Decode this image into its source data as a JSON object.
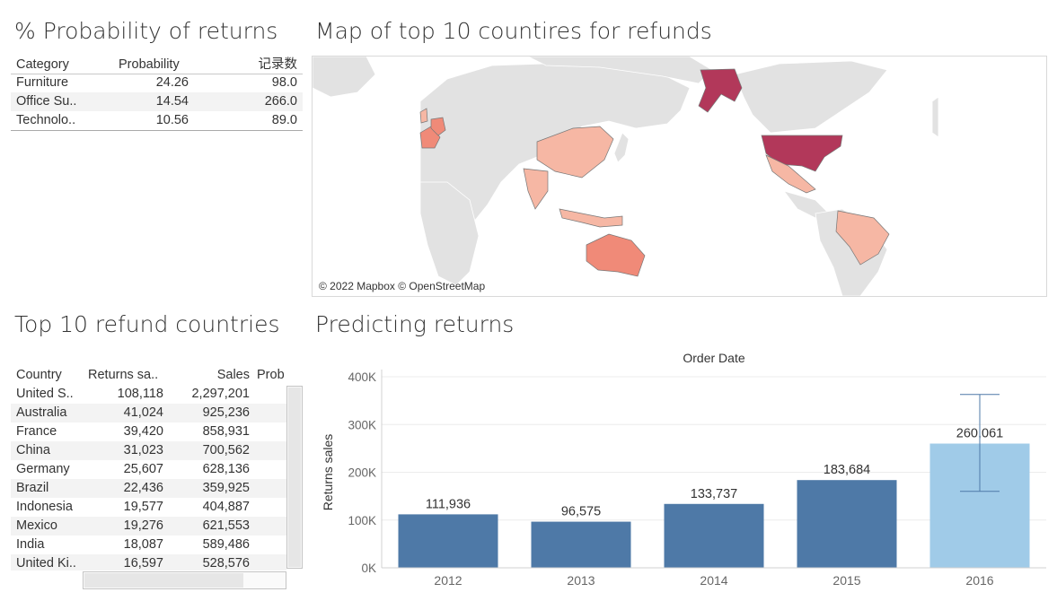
{
  "sheets": {
    "prob_title": "% Probability of returns",
    "map_title": "Map of top 10 countires for refunds",
    "top10_title": "Top 10 refund countries",
    "predict_title": "Predicting returns"
  },
  "probability_table": {
    "headers": [
      "Category",
      "Probability",
      "记录数"
    ],
    "rows": [
      {
        "category": "Furniture",
        "probability": "24.26",
        "count": "98.0"
      },
      {
        "category": "Office Su..",
        "probability": "14.54",
        "count": "266.0"
      },
      {
        "category": "Technolo..",
        "probability": "10.56",
        "count": "89.0"
      }
    ]
  },
  "map": {
    "attribution": "© 2022 Mapbox © OpenStreetMap",
    "highlighted_countries": [
      "United States",
      "Australia",
      "France",
      "China",
      "Germany",
      "Brazil",
      "Indonesia",
      "Mexico",
      "India",
      "United Kingdom"
    ],
    "colors": {
      "high": "#b2385a",
      "mid": "#f08a78",
      "low": "#f6b7a4",
      "land": "#e2e2e2",
      "water": "#ffffff"
    }
  },
  "countries_table": {
    "headers": [
      "Country",
      "Returns sa..",
      "Sales",
      "Prob"
    ],
    "rows": [
      {
        "country": "United S..",
        "returns": "108,118",
        "sales": "2,297,201"
      },
      {
        "country": "Australia",
        "returns": "41,024",
        "sales": "925,236"
      },
      {
        "country": "France",
        "returns": "39,420",
        "sales": "858,931"
      },
      {
        "country": "China",
        "returns": "31,023",
        "sales": "700,562"
      },
      {
        "country": "Germany",
        "returns": "25,607",
        "sales": "628,136"
      },
      {
        "country": "Brazil",
        "returns": "22,436",
        "sales": "359,925"
      },
      {
        "country": "Indonesia",
        "returns": "19,577",
        "sales": "404,887"
      },
      {
        "country": "Mexico",
        "returns": "19,276",
        "sales": "621,553"
      },
      {
        "country": "India",
        "returns": "18,087",
        "sales": "589,486"
      },
      {
        "country": "United Ki..",
        "returns": "16,597",
        "sales": "528,576"
      }
    ]
  },
  "chart_data": {
    "type": "bar",
    "title": "Order Date",
    "xlabel": "",
    "ylabel": "Returns sales",
    "categories": [
      "2012",
      "2013",
      "2014",
      "2015",
      "2016"
    ],
    "values": [
      111936,
      96575,
      133737,
      183684,
      260061
    ],
    "value_labels": [
      "111,936",
      "96,575",
      "133,737",
      "183,684",
      "260,061"
    ],
    "forecast": {
      "category": "2016",
      "interval_low": 160000,
      "interval_high": 363000
    },
    "ylim": [
      0,
      400000
    ],
    "yticks": [
      0,
      100000,
      200000,
      300000,
      400000
    ],
    "ytick_labels": [
      "0K",
      "100K",
      "200K",
      "300K",
      "400K"
    ],
    "grid": true,
    "colors": {
      "actual": "#4e79a7",
      "forecast": "#a0cbe8",
      "interval": "#4e79a7"
    }
  }
}
